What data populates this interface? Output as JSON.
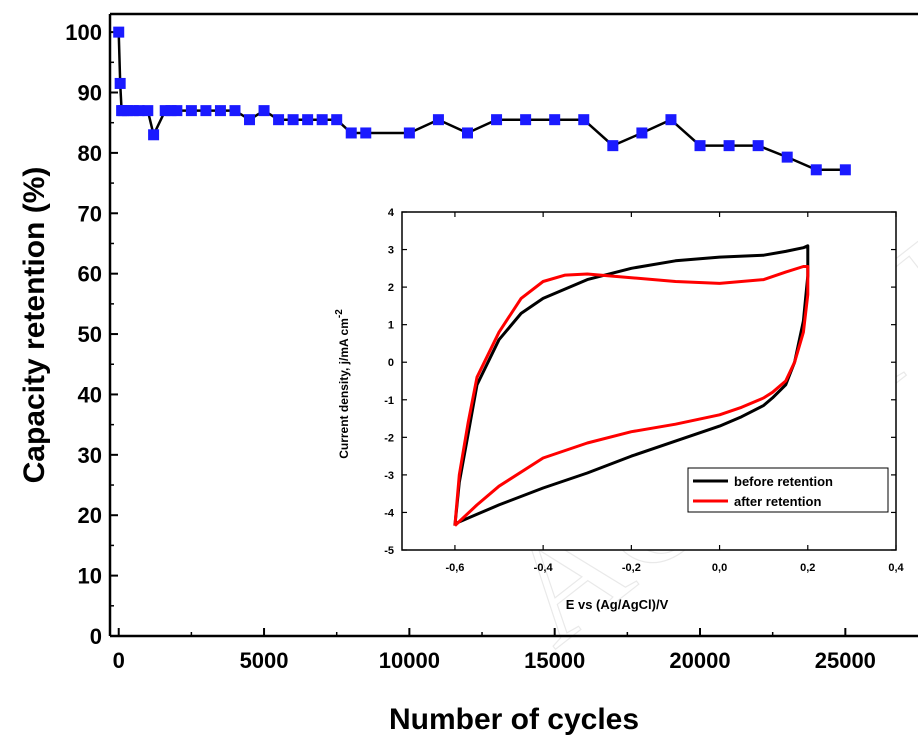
{
  "colors": {
    "main_series": "#1a1aff",
    "main_line": "#000000",
    "inset_before": "#000000",
    "inset_after": "#ff0000"
  },
  "watermark": "ACCEPTED MANUSCRIPT",
  "chart_data": [
    {
      "type": "line",
      "xlabel": "Number of cycles",
      "ylabel": "Capacity retention (%)",
      "xlim": [
        -300,
        27500
      ],
      "ylim": [
        0,
        103
      ],
      "xticks": [
        0,
        5000,
        10000,
        15000,
        20000,
        25000
      ],
      "yticks": [
        0,
        10,
        20,
        30,
        40,
        50,
        60,
        70,
        80,
        90,
        100
      ],
      "marker": "square",
      "series": [
        {
          "x": [
            0,
            50,
            100,
            150,
            300,
            500,
            700,
            1000,
            1200,
            1600,
            1800,
            2000,
            2500,
            3000,
            3500,
            4000,
            4500,
            5000,
            5500,
            6000,
            6500,
            7000,
            7500,
            8000,
            8500,
            10000,
            11000,
            12000,
            13000,
            14000,
            15000,
            16000,
            17000,
            18000,
            19000,
            20000,
            21000,
            22000,
            23000,
            24000,
            25000
          ],
          "y": [
            100,
            91.5,
            87,
            87,
            87,
            87,
            87,
            87,
            83,
            87,
            87,
            87,
            87,
            87,
            87,
            87,
            85.5,
            87,
            85.5,
            85.5,
            85.5,
            85.5,
            85.5,
            83.3,
            83.3,
            83.3,
            85.5,
            83.3,
            85.5,
            85.5,
            85.5,
            85.5,
            81.2,
            83.3,
            85.5,
            81.2,
            81.2,
            81.2,
            79.3,
            77.2,
            77.2
          ]
        }
      ]
    },
    {
      "type": "line",
      "xlabel": "E vs (Ag/AgCl)/V",
      "ylabel": "Current density, j/mA cm",
      "ylabel_superscript": "-2",
      "xlim": [
        -0.72,
        0.4
      ],
      "ylim": [
        -5,
        4
      ],
      "xticks": [
        "-0,6",
        "-0,4",
        "-0,2",
        "0,0",
        "0,2",
        "0,4"
      ],
      "yticks": [
        "-5",
        "-4",
        "-3",
        "-2",
        "-1",
        "0",
        "1",
        "2",
        "3",
        "4"
      ],
      "legend_position": "bottom-right",
      "series": [
        {
          "name": "before retention",
          "x": [
            -0.6,
            -0.59,
            -0.57,
            -0.55,
            -0.5,
            -0.45,
            -0.4,
            -0.3,
            -0.2,
            -0.1,
            0.0,
            0.1,
            0.15,
            0.19,
            0.2,
            0.2,
            0.19,
            0.17,
            0.15,
            0.12,
            0.1,
            0.05,
            0.0,
            -0.1,
            -0.2,
            -0.3,
            -0.4,
            -0.5,
            -0.55,
            -0.6,
            -0.6
          ],
          "y": [
            -4.35,
            -3.2,
            -1.9,
            -0.6,
            0.6,
            1.3,
            1.7,
            2.2,
            2.5,
            2.7,
            2.8,
            2.85,
            2.95,
            3.05,
            3.1,
            2.3,
            1.1,
            0.0,
            -0.6,
            -0.95,
            -1.15,
            -1.45,
            -1.7,
            -2.1,
            -2.5,
            -2.95,
            -3.35,
            -3.8,
            -4.05,
            -4.3,
            -4.35
          ]
        },
        {
          "name": "after retention",
          "x": [
            -0.6,
            -0.59,
            -0.57,
            -0.55,
            -0.5,
            -0.45,
            -0.4,
            -0.35,
            -0.3,
            -0.2,
            -0.1,
            0.0,
            0.1,
            0.15,
            0.19,
            0.2,
            0.2,
            0.19,
            0.17,
            0.15,
            0.12,
            0.1,
            0.05,
            0.0,
            -0.1,
            -0.2,
            -0.3,
            -0.4,
            -0.5,
            -0.55,
            -0.6
          ],
          "y": [
            -4.35,
            -3.0,
            -1.6,
            -0.4,
            0.8,
            1.7,
            2.15,
            2.32,
            2.35,
            2.25,
            2.15,
            2.1,
            2.2,
            2.4,
            2.55,
            2.55,
            1.8,
            0.8,
            0.0,
            -0.5,
            -0.8,
            -0.95,
            -1.2,
            -1.4,
            -1.65,
            -1.85,
            -2.15,
            -2.55,
            -3.3,
            -3.8,
            -4.35
          ]
        }
      ]
    }
  ]
}
